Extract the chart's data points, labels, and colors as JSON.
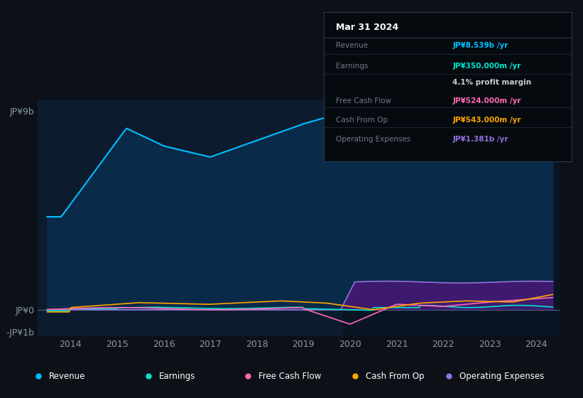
{
  "background_color": "#0d1117",
  "plot_bg_color": "#0d1b2e",
  "tooltip": {
    "title": "Mar 31 2024",
    "rows": [
      {
        "label": "Revenue",
        "value": "JP¥8.539b /yr",
        "color": "#00bfff"
      },
      {
        "label": "Earnings",
        "value": "JP¥350.000m /yr",
        "color": "#00e5cc"
      },
      {
        "label": "",
        "value": "4.1% profit margin",
        "color": "#dddddd"
      },
      {
        "label": "Free Cash Flow",
        "value": "JP¥524.000m /yr",
        "color": "#ff69b4"
      },
      {
        "label": "Cash From Op",
        "value": "JP¥543.000m /yr",
        "color": "#ffa500"
      },
      {
        "label": "Operating Expenses",
        "value": "JP¥1.381b /yr",
        "color": "#9370db"
      }
    ]
  },
  "y_label_top": "JP¥9b",
  "y_label_zero": "JP¥0",
  "y_label_neg": "-JP¥1b",
  "x_ticks": [
    2014,
    2015,
    2016,
    2017,
    2018,
    2019,
    2020,
    2021,
    2022,
    2023,
    2024
  ],
  "legend": [
    {
      "label": "Revenue",
      "color": "#00bfff"
    },
    {
      "label": "Earnings",
      "color": "#00e5cc"
    },
    {
      "label": "Free Cash Flow",
      "color": "#ff69b4"
    },
    {
      "label": "Cash From Op",
      "color": "#ffa500"
    },
    {
      "label": "Operating Expenses",
      "color": "#9370db"
    }
  ],
  "revenue_color": "#00bfff",
  "earnings_color": "#00e5cc",
  "fcf_color": "#ff69b4",
  "cashfromop_color": "#ffa500",
  "opex_color": "#9370db",
  "ylim_min": -1200000000.0,
  "ylim_max": 9500000000.0,
  "grid_color": "#1e3a5f",
  "axis_color": "#4a6080",
  "text_color": "#8899aa",
  "xlim_min": 2013.3,
  "xlim_max": 2024.5
}
